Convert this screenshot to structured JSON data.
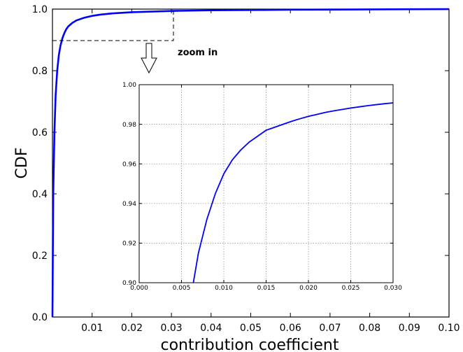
{
  "chart_data": [
    {
      "type": "line",
      "xlabel": "contribution coefficient",
      "ylabel": "CDF",
      "xlim": [
        0,
        0.1
      ],
      "ylim": [
        0,
        1.0
      ],
      "x_ticks": [
        "0.01",
        "0.02",
        "0.03",
        "0.04",
        "0.05",
        "0.06",
        "0.07",
        "0.08",
        "0.09",
        "0.10"
      ],
      "y_ticks": [
        "0.0",
        "0.2",
        "0.4",
        "0.6",
        "0.8",
        "1.0"
      ],
      "grid": false,
      "color": "#0000ff",
      "series": [
        {
          "x": [
            0,
            0.0002,
            0.0005,
            0.0008,
            0.0012,
            0.0016,
            0.002,
            0.0025,
            0.003,
            0.0035,
            0.004,
            0.005,
            0.006,
            0.008,
            0.01,
            0.012,
            0.015,
            0.02,
            0.025,
            0.03,
            0.04,
            0.05,
            0.06,
            0.07,
            0.08,
            0.09,
            0.1
          ],
          "y": [
            0,
            0.4,
            0.6,
            0.72,
            0.8,
            0.85,
            0.88,
            0.905,
            0.922,
            0.935,
            0.944,
            0.955,
            0.963,
            0.972,
            0.978,
            0.982,
            0.986,
            0.99,
            0.992,
            0.994,
            0.996,
            0.997,
            0.998,
            0.9985,
            0.999,
            0.9995,
            1.0
          ]
        }
      ],
      "annotations": [
        {
          "text": "zoom in"
        }
      ]
    },
    {
      "type": "line",
      "xlim": [
        0,
        0.03
      ],
      "ylim": [
        0.9,
        1.0
      ],
      "x_ticks": [
        "0.000",
        "0.005",
        "0.010",
        "0.015",
        "0.020",
        "0.025",
        "0.030"
      ],
      "y_ticks": [
        "0.90",
        "0.92",
        "0.94",
        "0.96",
        "0.98",
        "1.00"
      ],
      "grid": true,
      "color": "#0000ff",
      "series": [
        {
          "x": [
            0.0064,
            0.007,
            0.008,
            0.009,
            0.01,
            0.011,
            0.012,
            0.013,
            0.014,
            0.015,
            0.016,
            0.017,
            0.018,
            0.019,
            0.02,
            0.021,
            0.022,
            0.023,
            0.024,
            0.025,
            0.026,
            0.027,
            0.028,
            0.029,
            0.03
          ],
          "y": [
            0.9,
            0.915,
            0.932,
            0.945,
            0.955,
            0.962,
            0.967,
            0.971,
            0.974,
            0.977,
            0.9785,
            0.98,
            0.9815,
            0.9828,
            0.984,
            0.985,
            0.986,
            0.9868,
            0.9875,
            0.9882,
            0.9888,
            0.9894,
            0.9899,
            0.9904,
            0.9908
          ]
        }
      ]
    }
  ]
}
